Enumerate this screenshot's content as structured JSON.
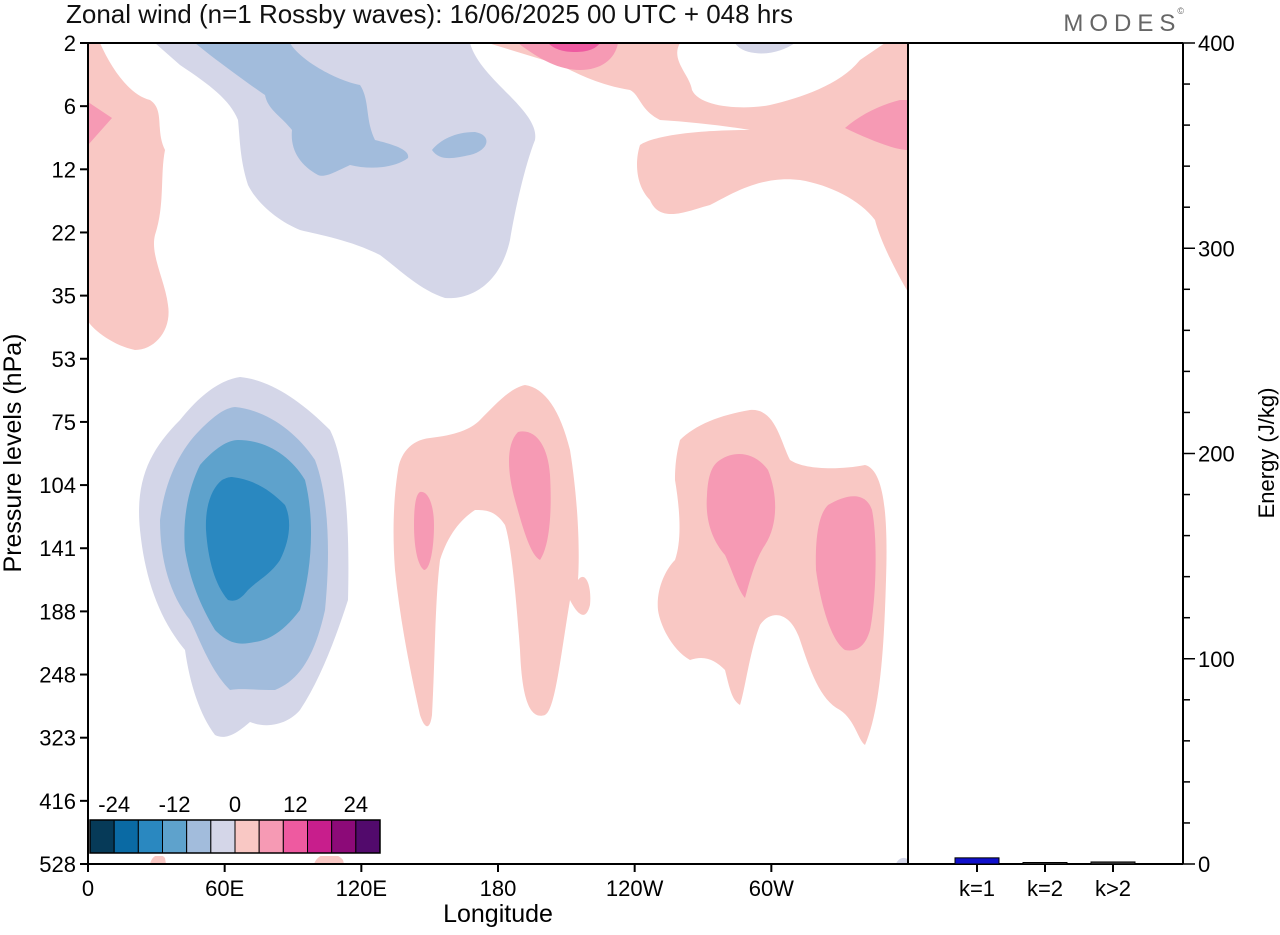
{
  "title": "Zonal wind (n=1 Rossby waves):  16/06/2025  00 UTC  + 048 hrs",
  "logo": "MODES",
  "logo_mark": "©",
  "colors": {
    "neg": [
      "#063a58",
      "#0a6aa4",
      "#2a88c0",
      "#5ea2cc",
      "#a2bcdc",
      "#d4d6e8"
    ],
    "zero": "#ffffff",
    "pos": [
      "#f9c8c4",
      "#f69ab4",
      "#ee5aa0",
      "#c81e8c",
      "#8c0a78",
      "#520a6c"
    ],
    "bar": "#1010cc",
    "axis": "#000000"
  },
  "chart_data": [
    {
      "type": "heatmap",
      "xlabel": "Longitude",
      "ylabel": "Pressure levels (hPa)",
      "x_ticks": [
        "0",
        "60E",
        "120E",
        "180",
        "120W",
        "60W"
      ],
      "y_ticks": [
        "2",
        "6",
        "12",
        "22",
        "35",
        "53",
        "75",
        "104",
        "141",
        "188",
        "248",
        "323",
        "416",
        "528"
      ],
      "colorbar": {
        "labels": [
          "-24",
          "-12",
          "0",
          "12",
          "24"
        ],
        "levels": [
          -30,
          -25,
          -20,
          -15,
          -10,
          -5,
          5,
          10,
          15,
          20,
          25,
          30
        ]
      },
      "features": [
        {
          "sign": "negative",
          "lon": 60,
          "level": 141,
          "min": -20
        },
        {
          "sign": "positive",
          "lon": 145,
          "level": 141,
          "max": 10
        },
        {
          "sign": "positive",
          "lon": 190,
          "level": 104,
          "max": 10
        },
        {
          "sign": "positive",
          "lon": 288,
          "level": 104,
          "max": 10
        },
        {
          "sign": "positive",
          "lon": 330,
          "level": 141,
          "max": 10
        },
        {
          "sign": "negative",
          "lon": 110,
          "level": 6,
          "min": -10
        },
        {
          "sign": "positive",
          "lon": 212,
          "level": 2,
          "max": 15
        },
        {
          "sign": "positive",
          "lon": 355,
          "level": 6,
          "max": 10
        }
      ]
    },
    {
      "type": "bar",
      "categories": [
        "k=1",
        "k=2",
        "k>2"
      ],
      "values": [
        3,
        0.5,
        1
      ],
      "ylabel": "Energy (J/kg)",
      "ylim": [
        0,
        400
      ],
      "y_ticks": [
        "0",
        "100",
        "200",
        "300",
        "400"
      ]
    }
  ]
}
